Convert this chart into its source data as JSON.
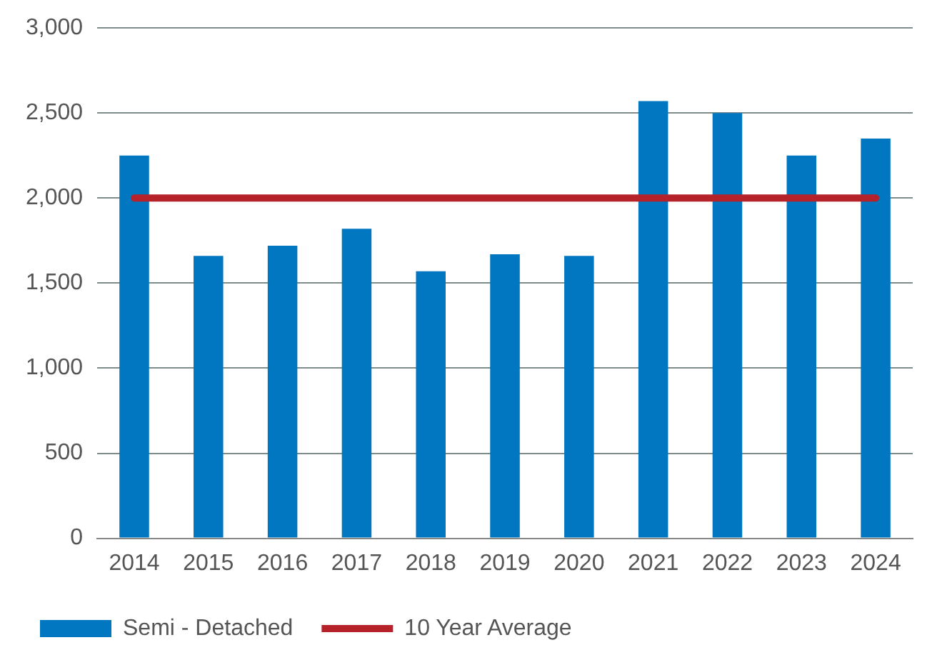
{
  "chart_data": {
    "type": "bar",
    "categories": [
      "2014",
      "2015",
      "2016",
      "2017",
      "2018",
      "2019",
      "2020",
      "2021",
      "2022",
      "2023",
      "2024"
    ],
    "series": [
      {
        "name": "Semi - Detached",
        "color": "#0077c0",
        "values": [
          2250,
          1660,
          1720,
          1820,
          1570,
          1670,
          1660,
          2570,
          2500,
          2250,
          2350
        ]
      },
      {
        "name": "10 Year Average",
        "type": "line",
        "color": "#b5222a",
        "values": [
          2000,
          2000,
          2000,
          2000,
          2000,
          2000,
          2000,
          2000,
          2000,
          2000,
          2000
        ]
      }
    ],
    "ylim": [
      0,
      3000
    ],
    "yticks": [
      {
        "value": 0,
        "label": "0"
      },
      {
        "value": 500,
        "label": "500"
      },
      {
        "value": 1000,
        "label": "1,000"
      },
      {
        "value": 1500,
        "label": "1,500"
      },
      {
        "value": 2000,
        "label": "2,000"
      },
      {
        "value": 2500,
        "label": "2,500"
      },
      {
        "value": 3000,
        "label": "3,000"
      }
    ],
    "grid": "y",
    "legend": "bottom",
    "marker": "none"
  }
}
